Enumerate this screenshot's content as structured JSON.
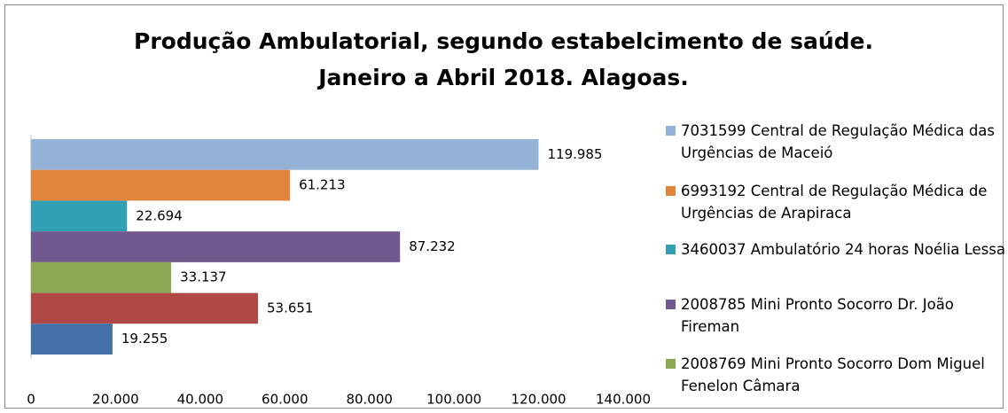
{
  "chart_data": {
    "type": "barh",
    "title": [
      "Produção Ambulatorial, segundo estabelcimento de saúde.",
      "Janeiro a Abril 2018. Alagoas."
    ],
    "series": [
      {
        "name": "7031599 Central de Regulação Médica das Urgências de Maceió",
        "color": "#95b3d7",
        "values": [
          119985
        ],
        "value_labels": [
          "119.985"
        ]
      },
      {
        "name": "6993192 Central de Regulação Médica de Urgências de Arapiraca",
        "color": "#e0853b",
        "values": [
          61213
        ],
        "value_labels": [
          "61.213"
        ]
      },
      {
        "name": "3460037 Ambulatório 24 horas Noélia Lessa",
        "color": "#31a0b5",
        "values": [
          22694
        ],
        "value_labels": [
          "22.694"
        ]
      },
      {
        "name": "2008785 Mini Pronto Socorro Dr. João Fireman",
        "color": "#71588f",
        "values": [
          87232
        ],
        "value_labels": [
          "87.232"
        ]
      },
      {
        "name": "2008769 Mini Pronto Socorro Dom Miguel Fenelon Câmara",
        "color": "#8ba855",
        "values": [
          33137
        ],
        "value_labels": [
          "33.137"
        ]
      },
      {
        "color": "#b04946",
        "values": [
          53651
        ],
        "value_labels": [
          "53.651"
        ]
      },
      {
        "color": "#4472a8",
        "values": [
          19255
        ],
        "value_labels": [
          "19.255"
        ]
      }
    ],
    "xlim": [
      0,
      140000
    ],
    "xticks": [
      0,
      {
        "value": 20000,
        "label": "20.000"
      },
      {
        "value": 40000,
        "label": "40.000"
      },
      {
        "value": 60000,
        "label": "60.000"
      },
      {
        "value": 80000,
        "label": "80.000"
      },
      {
        "value": 100000,
        "label": "100.000"
      },
      {
        "value": 120000,
        "label": "120.000"
      },
      {
        "value": 140000,
        "label": "140.000"
      }
    ],
    "grid": false,
    "legend": "right"
  }
}
